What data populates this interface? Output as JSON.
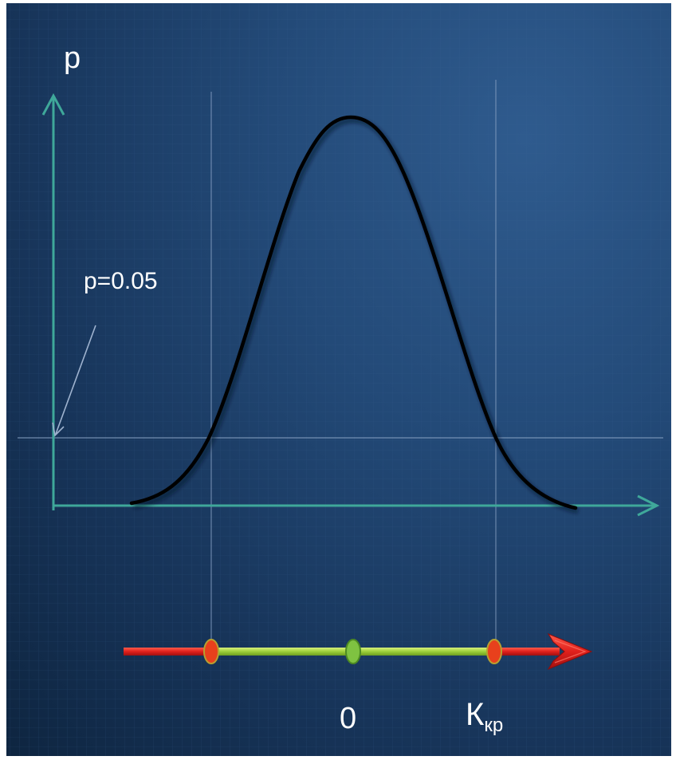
{
  "labels": {
    "y_axis": "p",
    "threshold": "p=0.05",
    "center_point": "0",
    "critical_main": "К",
    "critical_sub": "кр"
  },
  "colors": {
    "background": "#1e416b",
    "axis": "#3fa89a",
    "curve": "#000000",
    "guide_lines": "#8aa3c4",
    "arrow_red": "#e0201c",
    "segment_green": "#9ccf3a",
    "marker_red": "#e8401c",
    "marker_green": "#7fc241",
    "text": "#ffffff"
  }
}
